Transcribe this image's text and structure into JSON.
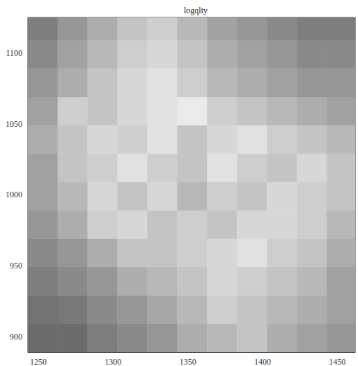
{
  "chart_data": {
    "type": "heatmap",
    "title": "logqlty",
    "xlim": [
      1243,
      1462
    ],
    "ylim": [
      889,
      1125
    ],
    "xticks": [
      1250,
      1300,
      1350,
      1400,
      1450
    ],
    "yticks": [
      900,
      950,
      1000,
      1050,
      1100
    ],
    "x_edges": [
      1243,
      1263,
      1283,
      1303,
      1323,
      1343,
      1363,
      1383,
      1403,
      1423,
      1443,
      1462
    ],
    "y_edges": [
      889,
      909,
      929,
      949,
      969,
      989,
      1009,
      1029,
      1049,
      1069,
      1089,
      1109,
      1125
    ],
    "zlim": [
      1,
      4
    ],
    "z": [
      [
        1.5,
        1.5,
        1.8,
        2.0,
        2.2,
        2.6,
        2.8,
        3.0,
        2.6,
        2.4,
        2.2
      ],
      [
        1.6,
        1.7,
        2.0,
        2.2,
        2.5,
        2.8,
        3.2,
        3.0,
        2.8,
        2.6,
        2.4
      ],
      [
        1.8,
        2.0,
        2.2,
        2.6,
        2.8,
        3.0,
        3.4,
        3.2,
        3.0,
        2.8,
        2.4
      ],
      [
        2.0,
        2.2,
        2.6,
        3.0,
        3.0,
        3.2,
        3.4,
        3.6,
        3.2,
        3.0,
        2.6
      ],
      [
        2.2,
        2.6,
        3.2,
        3.4,
        3.0,
        3.2,
        3.0,
        3.4,
        3.4,
        3.2,
        2.8
      ],
      [
        2.4,
        2.8,
        3.4,
        3.0,
        3.4,
        2.8,
        3.2,
        3.0,
        3.4,
        3.2,
        3.0
      ],
      [
        2.4,
        3.0,
        3.2,
        3.6,
        3.2,
        3.0,
        3.6,
        3.2,
        3.0,
        3.4,
        3.0
      ],
      [
        2.6,
        3.0,
        3.4,
        3.2,
        3.6,
        3.0,
        3.4,
        3.6,
        3.2,
        3.0,
        2.8
      ],
      [
        2.4,
        3.2,
        3.0,
        3.4,
        3.6,
        3.8,
        3.2,
        3.0,
        2.8,
        2.6,
        2.4
      ],
      [
        2.2,
        2.6,
        3.0,
        3.4,
        3.6,
        3.2,
        2.8,
        2.6,
        2.4,
        2.2,
        2.2
      ],
      [
        2.0,
        2.4,
        2.8,
        3.2,
        3.4,
        3.0,
        2.6,
        2.4,
        2.2,
        2.0,
        2.0
      ],
      [
        1.8,
        2.2,
        2.6,
        3.0,
        3.2,
        2.8,
        2.4,
        2.2,
        2.0,
        1.8,
        1.8
      ]
    ]
  }
}
